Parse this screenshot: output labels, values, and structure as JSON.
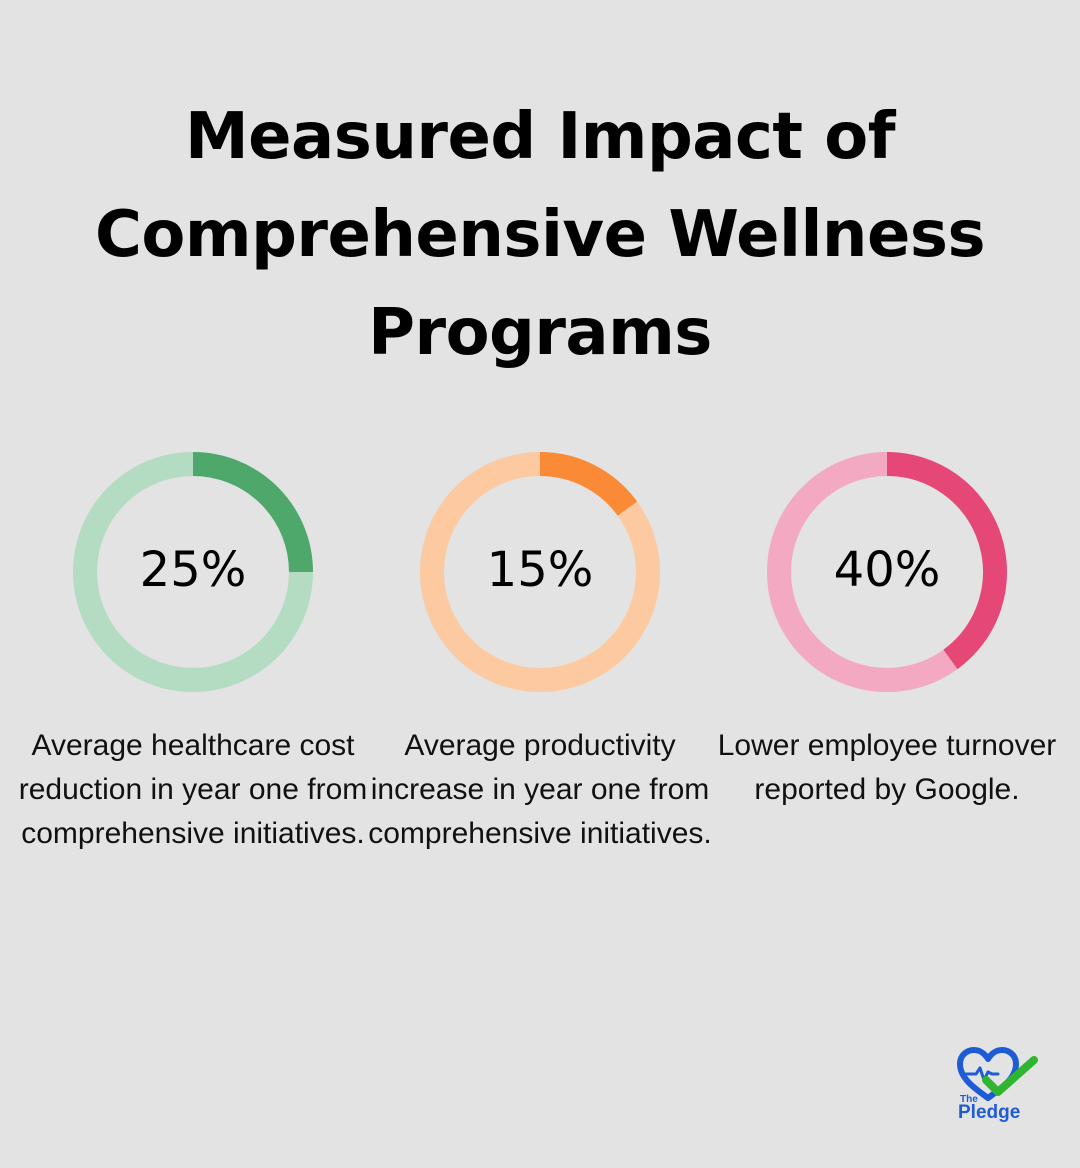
{
  "title": "Measured Impact of Comprehensive Wellness Programs",
  "chart_data": {
    "type": "pie",
    "items": [
      {
        "value": 25,
        "label": "25%",
        "description": "Average healthcare cost reduction in year one from comprehensive initiatives.",
        "fill_color": "#4fa86b",
        "track_color": "#b3dcc2"
      },
      {
        "value": 15,
        "label": "15%",
        "description": "Average productivity increase in year one from comprehensive initiatives.",
        "fill_color": "#fb8a37",
        "track_color": "#fdc9a0"
      },
      {
        "value": 40,
        "label": "40%",
        "description": "Lower employee turnover reported by Google.",
        "fill_color": "#e54877",
        "track_color": "#f2a9c1"
      }
    ]
  },
  "logo": {
    "small_text": "The",
    "main_text": "Pledge",
    "icon": "heart-check-icon",
    "colors": {
      "heart": "#1e5cd6",
      "check": "#2fb52f"
    }
  }
}
